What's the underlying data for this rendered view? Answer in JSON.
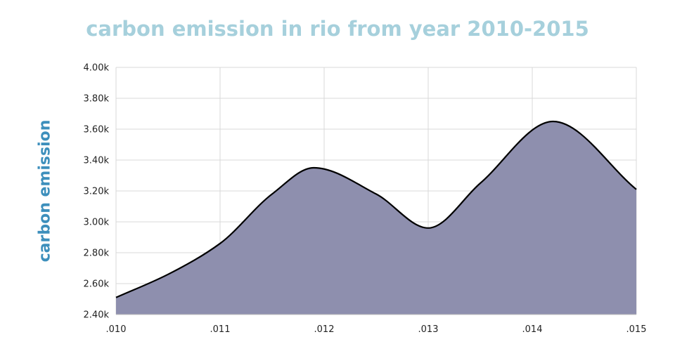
{
  "chart_data": {
    "type": "area",
    "title": "carbon emission in rio from year 2010-2015",
    "xlabel": "",
    "ylabel": "carbon emission",
    "x_tick_labels": [
      ".010",
      ".011",
      ".012",
      ".013",
      ".014",
      ".015"
    ],
    "y_tick_labels": [
      "2.40k",
      "2.60k",
      "2.80k",
      "3.00k",
      "3.20k",
      "3.40k",
      "3.60k",
      "3.80k",
      "4.00k"
    ],
    "ylim": [
      2400,
      4000
    ],
    "xlim": [
      0.01,
      0.015
    ],
    "grid": true,
    "colors": {
      "fill": "#8e8fae",
      "line": "#000000",
      "grid": "#d9d9d9"
    },
    "series": [
      {
        "x": [
          0.01,
          0.0105,
          0.011,
          0.0115,
          0.0119,
          0.0125,
          0.013,
          0.0135,
          0.0142,
          0.015
        ],
        "values": [
          2510,
          2660,
          2860,
          3180,
          3350,
          3180,
          2960,
          3250,
          3650,
          3210
        ]
      }
    ]
  }
}
